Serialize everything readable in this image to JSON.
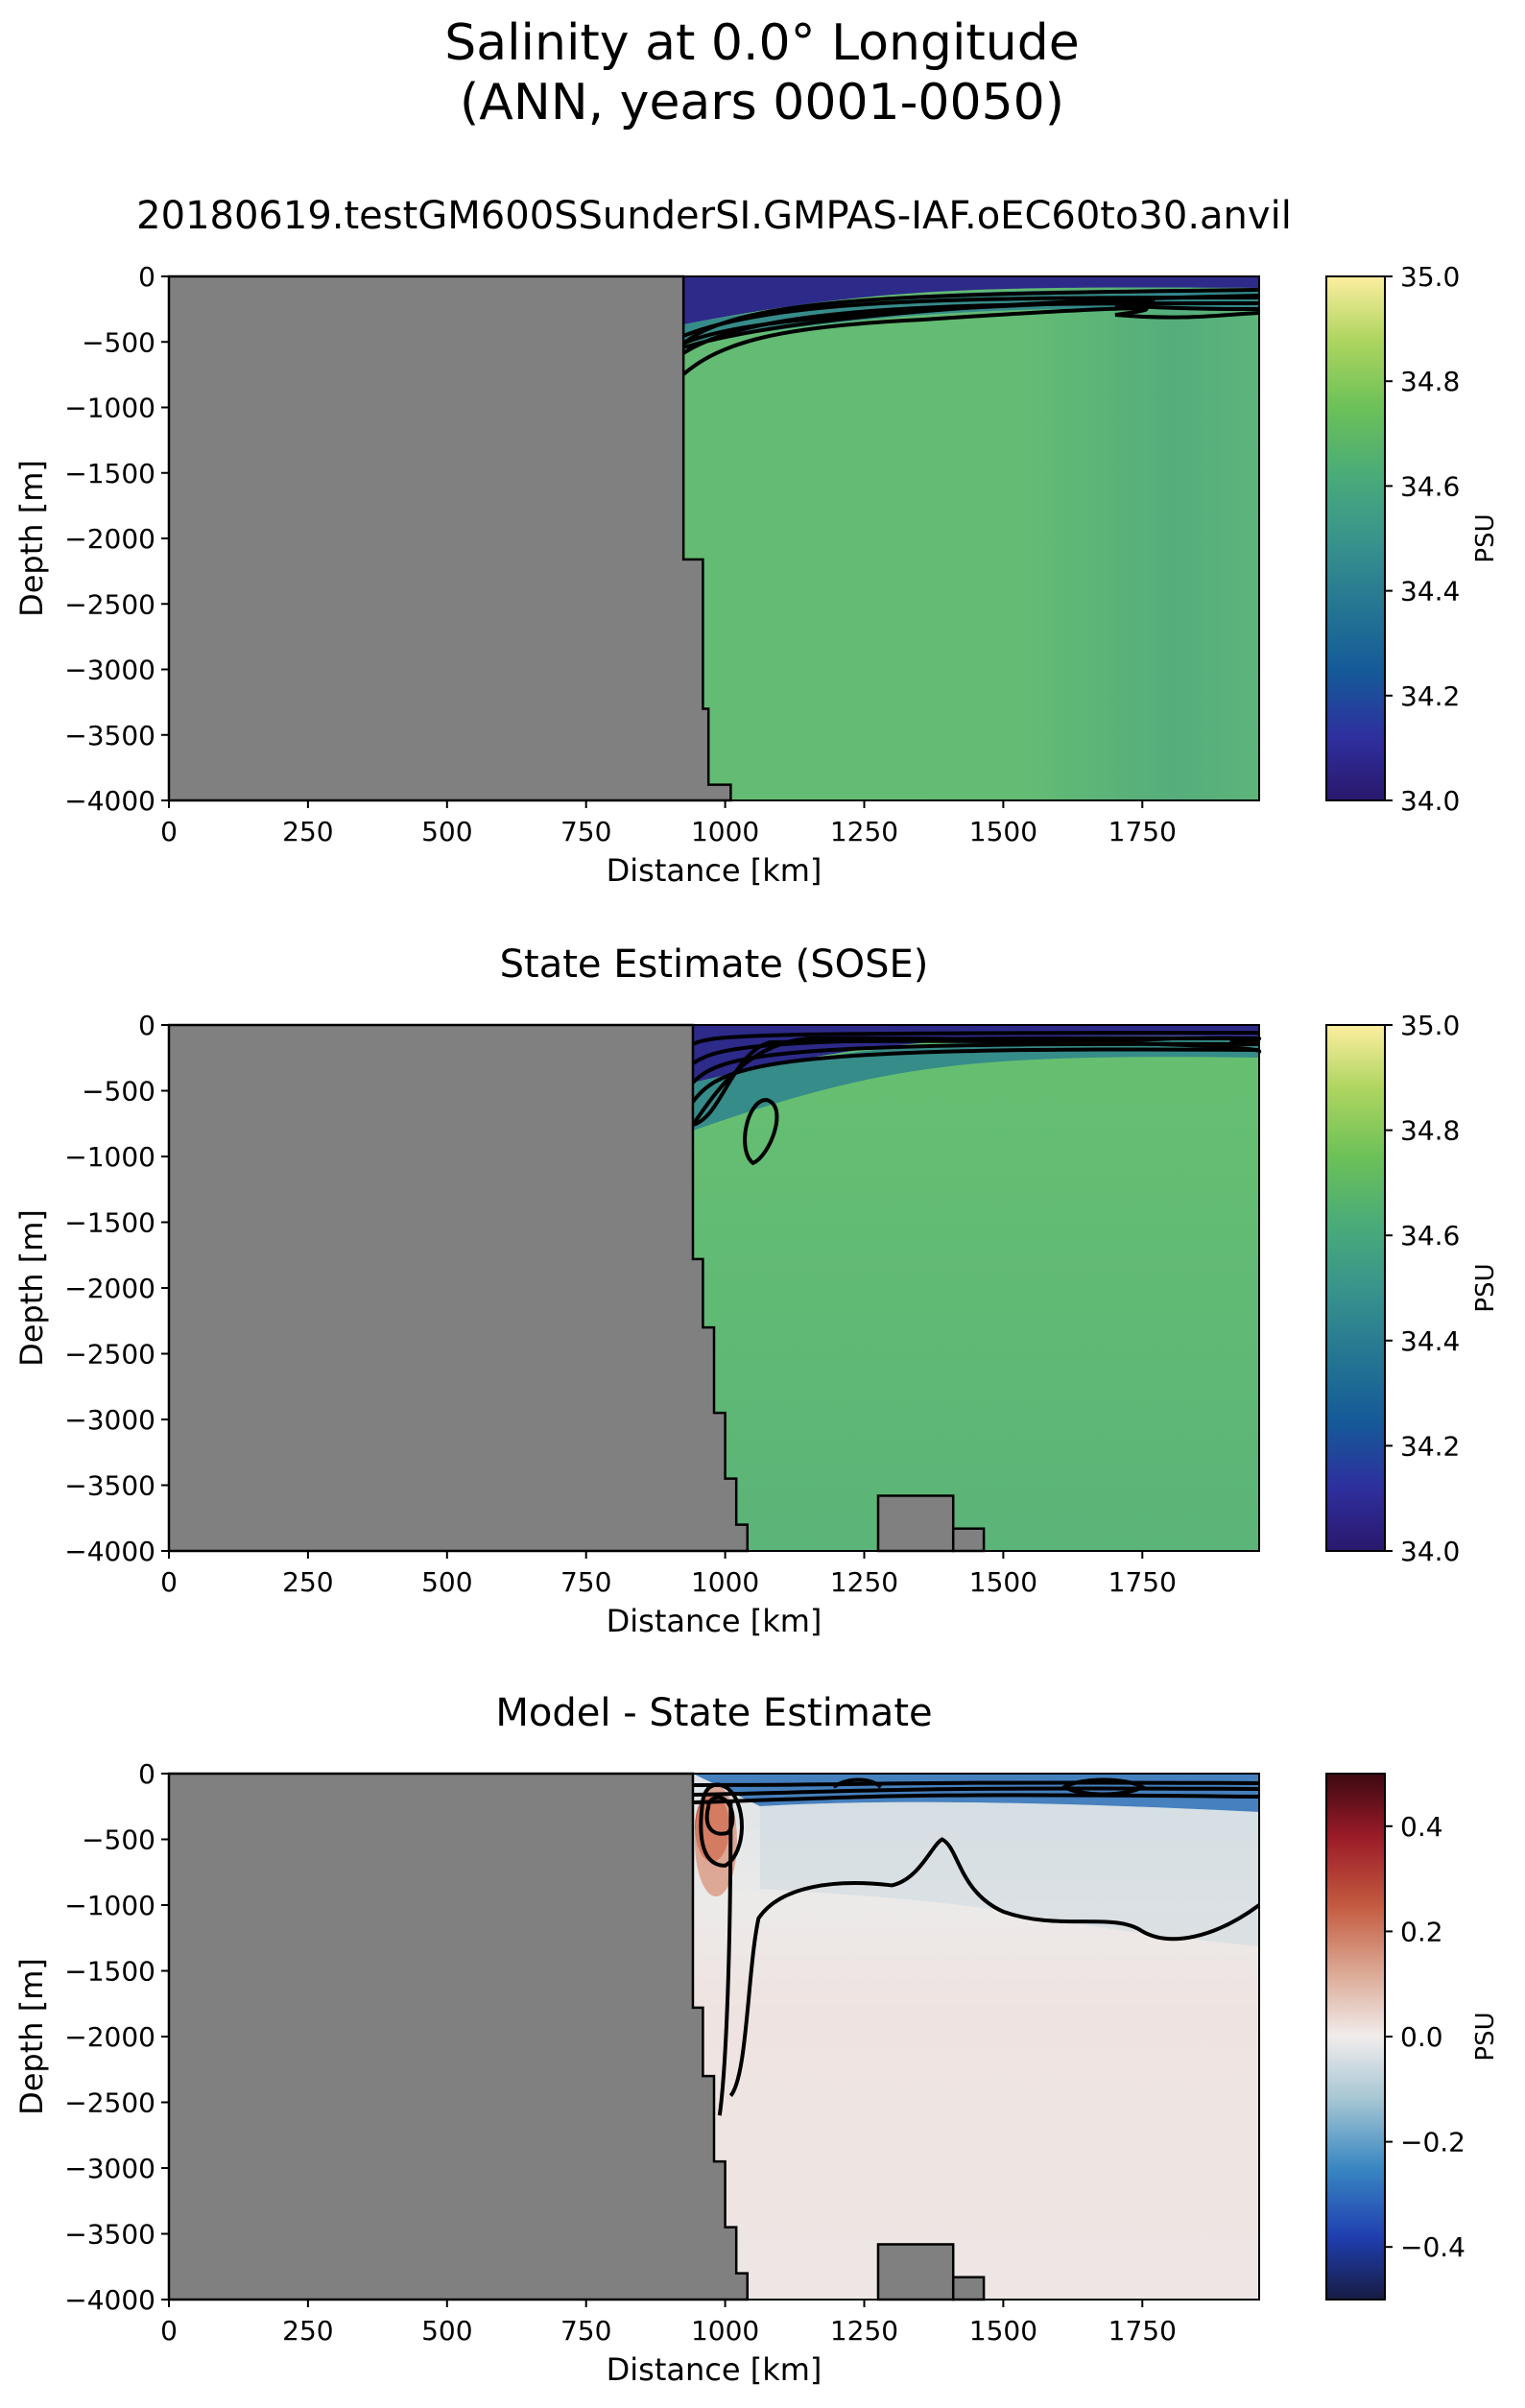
{
  "figure": {
    "title_line1": "Salinity at 0.0° Longitude",
    "title_line2": "(ANN, years 0001-0050)"
  },
  "colors": {
    "land": "#808080",
    "field_green": "#5fb878",
    "surface_purple": "#30207a",
    "contour": "#000000"
  },
  "chart_data": [
    {
      "type": "heatmap",
      "title": "20180619.testGM600SSunderSI.GMPAS-IAF.oEC60to30.anvil",
      "xlabel": "Distance [km]",
      "ylabel": "Depth [m]",
      "xlim": [
        0,
        1960
      ],
      "ylim": [
        -4000,
        0
      ],
      "xticks": [
        "0",
        "250",
        "500",
        "750",
        "1000",
        "1250",
        "1500",
        "1750"
      ],
      "yticks": [
        "0",
        "−500",
        "−1000",
        "−1500",
        "−2000",
        "−2500",
        "−3000",
        "−3500",
        "−4000"
      ],
      "colorbar": {
        "label": "PSU",
        "colormap": "haline",
        "range": [
          34.0,
          35.0
        ],
        "ticks": [
          "35.0",
          "34.8",
          "34.6",
          "34.4",
          "34.2",
          "34.0"
        ]
      },
      "interior_value": 34.66,
      "surface_value": 34.1,
      "bathymetry": [
        [
          925,
          -2160
        ],
        [
          960,
          -3300
        ],
        [
          970,
          -3880
        ],
        [
          1010,
          -4000
        ]
      ],
      "coast_km": 925
    },
    {
      "type": "heatmap",
      "title": "State Estimate (SOSE)",
      "xlabel": "Distance [km]",
      "ylabel": "Depth [m]",
      "xlim": [
        0,
        1960
      ],
      "ylim": [
        -4000,
        0
      ],
      "xticks": [
        "0",
        "250",
        "500",
        "750",
        "1000",
        "1250",
        "1500",
        "1750"
      ],
      "yticks": [
        "0",
        "−500",
        "−1000",
        "−1500",
        "−2000",
        "−2500",
        "−3000",
        "−3500",
        "−4000"
      ],
      "colorbar": {
        "label": "PSU",
        "colormap": "haline",
        "range": [
          34.0,
          35.0
        ],
        "ticks": [
          "35.0",
          "34.8",
          "34.6",
          "34.4",
          "34.2",
          "34.0"
        ]
      },
      "interior_value": 34.68,
      "surface_value": 34.1,
      "bathymetry": [
        [
          942,
          -1780
        ],
        [
          960,
          -2300
        ],
        [
          980,
          -2950
        ],
        [
          1000,
          -3450
        ],
        [
          1020,
          -3800
        ],
        [
          1040,
          -4000
        ]
      ],
      "seamount": [
        [
          1275,
          1410,
          -3580
        ],
        [
          1410,
          1465,
          -3830
        ]
      ],
      "coast_km": 942
    },
    {
      "type": "heatmap",
      "title": "Model - State Estimate",
      "xlabel": "Distance [km]",
      "ylabel": "Depth [m]",
      "xlim": [
        0,
        1960
      ],
      "ylim": [
        -4000,
        0
      ],
      "xticks": [
        "0",
        "250",
        "500",
        "750",
        "1000",
        "1250",
        "1500",
        "1750"
      ],
      "yticks": [
        "0",
        "−500",
        "−1000",
        "−1500",
        "−2000",
        "−2500",
        "−3000",
        "−3500",
        "−4000"
      ],
      "colorbar": {
        "label": "PSU",
        "colormap": "balance",
        "range": [
          -0.5,
          0.5
        ],
        "ticks": [
          "0.4",
          "0.2",
          "0.0",
          "−0.2",
          "−0.4"
        ]
      },
      "interior_value": 0.01,
      "positive_anomaly": 0.3,
      "negative_anomaly": -0.3,
      "bathymetry": [
        [
          942,
          -1780
        ],
        [
          960,
          -2300
        ],
        [
          980,
          -2950
        ],
        [
          1000,
          -3450
        ],
        [
          1020,
          -3800
        ],
        [
          1040,
          -4000
        ]
      ],
      "seamount": [
        [
          1275,
          1410,
          -3580
        ],
        [
          1410,
          1465,
          -3830
        ]
      ],
      "coast_km": 942
    }
  ]
}
